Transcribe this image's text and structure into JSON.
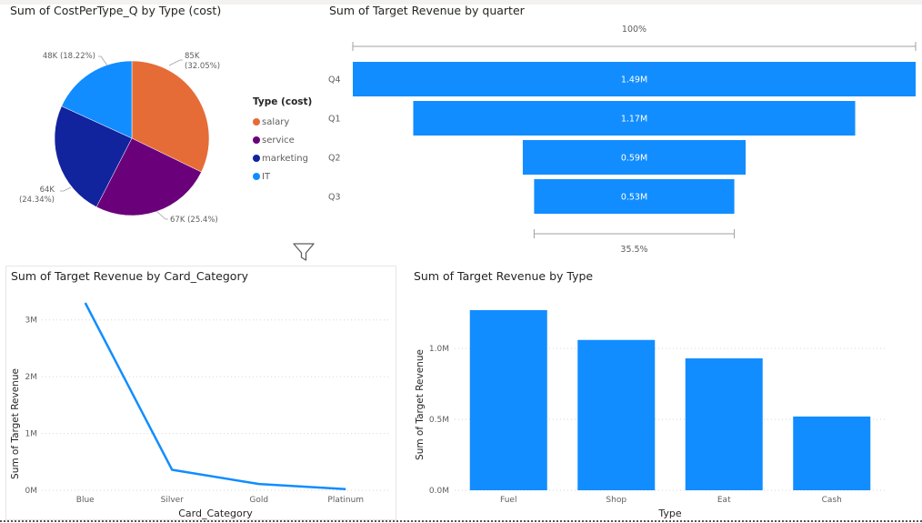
{
  "titles": {
    "pie": "Sum of CostPerType_Q by Type (cost)",
    "funnel": "Sum of Target Revenue by quarter",
    "line": "Sum of Target Revenue by Card_Category",
    "bar": "Sum of Target Revenue by Type"
  },
  "colors": {
    "blue": "#118dff",
    "orange": "#e66c37",
    "purple": "#6b007b",
    "navy": "#12239e"
  },
  "chart_data": [
    {
      "type": "pie",
      "title": "Sum of CostPerType_Q by Type (cost)",
      "legend_title": "Type (cost)",
      "slices": [
        {
          "name": "salary",
          "value": 85,
          "label": "85K",
          "pct": "(32.05%)",
          "color": "#e66c37"
        },
        {
          "name": "service",
          "value": 67,
          "label": "67K (25.4%)",
          "pct": "",
          "color": "#6b007b"
        },
        {
          "name": "marketing",
          "value": 64,
          "label": "64K",
          "pct": "(24.34%)",
          "color": "#12239e"
        },
        {
          "name": "IT",
          "value": 48,
          "label": "48K (18.22%)",
          "pct": "",
          "color": "#118dff"
        }
      ]
    },
    {
      "type": "bar",
      "subtype": "funnel",
      "title": "Sum of Target Revenue by quarter",
      "categories": [
        "Q4",
        "Q1",
        "Q2",
        "Q3"
      ],
      "values": [
        1.49,
        1.17,
        0.59,
        0.53
      ],
      "value_labels": [
        "1.49M",
        "1.17M",
        "0.59M",
        "0.53M"
      ],
      "top_label": "100%",
      "bottom_label": "35.5%"
    },
    {
      "type": "line",
      "title": "Sum of Target Revenue by Card_Category",
      "categories": [
        "Blue",
        "Silver",
        "Gold",
        "Platinum"
      ],
      "values": [
        3.3,
        0.36,
        0.11,
        0.02
      ],
      "xlabel": "Card_Category",
      "ylabel": "Sum of Target Revenue",
      "yticks": [
        "0M",
        "1M",
        "2M",
        "3M"
      ],
      "ylim": [
        0,
        3.3
      ]
    },
    {
      "type": "bar",
      "title": "Sum of Target Revenue by Type",
      "categories": [
        "Fuel",
        "Shop",
        "Eat",
        "Cash"
      ],
      "values": [
        1.27,
        1.06,
        0.93,
        0.52
      ],
      "xlabel": "Type",
      "ylabel": "Sum of Target Revenue",
      "yticks": [
        "0.0M",
        "0.5M",
        "1.0M"
      ],
      "ylim": [
        0,
        1.27
      ]
    }
  ]
}
